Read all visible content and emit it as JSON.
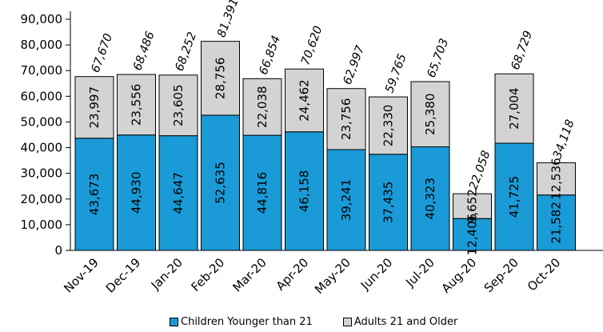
{
  "chart_data": {
    "type": "bar",
    "stacked": true,
    "title": "",
    "xlabel": "",
    "ylabel": "",
    "ylim": [
      0,
      90000
    ],
    "yticks": [
      "0",
      "10,000",
      "20,000",
      "30,000",
      "40,000",
      "50,000",
      "60,000",
      "70,000",
      "80,000",
      "90,000"
    ],
    "categories": [
      "Nov-19",
      "Dec-19",
      "Jan-20",
      "Feb-20",
      "Mar-20",
      "Apr-20",
      "May-20",
      "Jun-20",
      "Jul-20",
      "Aug-20",
      "Sep-20",
      "Oct-20"
    ],
    "series": [
      {
        "name": "Children Younger than 21",
        "color": "#1a9ad6",
        "values": [
          43673,
          44930,
          44647,
          52635,
          44816,
          46158,
          39241,
          37435,
          40323,
          12406,
          41725,
          21582
        ],
        "labels": [
          "43,673",
          "44,930",
          "44,647",
          "52,635",
          "44,816",
          "46,158",
          "39,241",
          "37,435",
          "40,323",
          "12,406",
          "41,725",
          "21,582"
        ]
      },
      {
        "name": "Adults 21 and Older",
        "color": "#d3d3d3",
        "values": [
          23997,
          23556,
          23605,
          28756,
          22038,
          24462,
          23756,
          22330,
          25380,
          9652,
          27004,
          12536
        ],
        "labels": [
          "23,997",
          "23,556",
          "23,605",
          "28,756",
          "22,038",
          "24,462",
          "23,756",
          "22,330",
          "25,380",
          "9,652",
          "27,004",
          "12,536"
        ]
      }
    ],
    "totals": [
      67670,
      68486,
      68252,
      81391,
      66854,
      70620,
      62997,
      59765,
      65703,
      22058,
      68729,
      34118
    ],
    "total_labels": [
      "67,670",
      "68,486",
      "68,252",
      "81,391",
      "66,854",
      "70,620",
      "62,997",
      "59,765",
      "65,703",
      "22,058",
      "68,729",
      "34,118"
    ],
    "grid": false,
    "legend_position": "bottom"
  }
}
